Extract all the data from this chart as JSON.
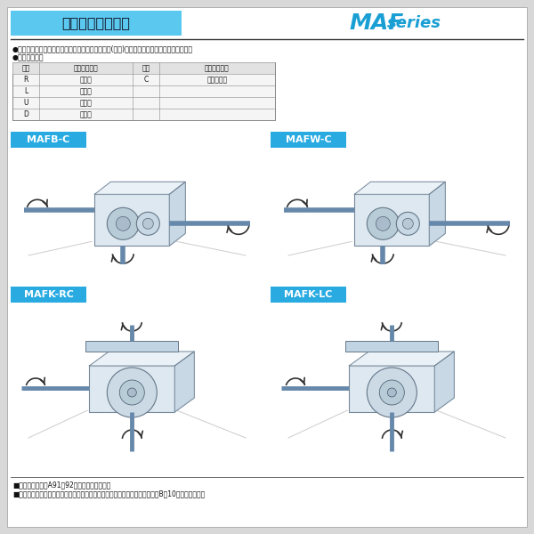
{
  "title": "軸配置と回転方向",
  "title_bg_color": "#5bc8f0",
  "maf_MAF_color": "#1a9fd4",
  "maf_series_color": "#1a9fd4",
  "page_bg": "#d8d8d8",
  "content_bg": "#ffffff",
  "bullet_text1": "●軸配置は入力軸またはモータを手前にして出力軸(青色)の出ている方向で決定して下さい。",
  "bullet_text2": "●軸配置の記号",
  "table_headers": [
    "記号",
    "出力軸の方向",
    "記号",
    "出力軸の方向"
  ],
  "table_rows": [
    [
      "R",
      "右　側",
      "C",
      "出力軸退職"
    ],
    [
      "L",
      "左　側",
      "",
      ""
    ],
    [
      "U",
      "上　側",
      "",
      ""
    ],
    [
      "D",
      "下　側",
      "",
      ""
    ]
  ],
  "box_labels": [
    "MAFB-C",
    "MAFW-C",
    "MAFK-RC",
    "MAFK-LC"
  ],
  "box_label_bg": "#29abe2",
  "box_label_color": "#ffffff",
  "footer_text1": "■軸配置の詳細はA91・92を参照して下さい。",
  "footer_text2": "■特殊な取付状態については、当社へお問い合わせ下さい。なお、参考としてB－10をご覧下さい。",
  "line_color": "#555555",
  "box_edge_color": "#aaaaaa",
  "gear_body_color": "#d0dce8",
  "gear_edge_color": "#888899",
  "shaft_color": "#6688bb",
  "arrow_color": "#333333"
}
